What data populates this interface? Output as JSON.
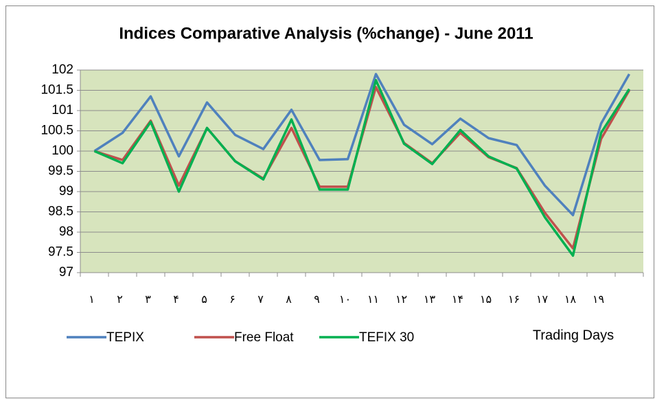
{
  "chart_data": {
    "type": "line",
    "title": "Indices Comparative Analysis (%change) - June 2011",
    "x_label": "Trading Days",
    "categories": [
      "۱",
      "۲",
      "۳",
      "۴",
      "۵",
      "۶",
      "۷",
      "۸",
      "۹",
      "۱۰",
      "۱۱",
      "۱۲",
      "۱۳",
      "۱۴",
      "۱۵",
      "۱۶",
      "۱۷",
      "۱۸",
      "۱۹",
      null
    ],
    "series": [
      {
        "name": "TEPIX",
        "color": "#4f81bd",
        "values": [
          100,
          100.45,
          101.35,
          99.87,
          101.2,
          100.4,
          100.05,
          101.02,
          99.78,
          99.8,
          101.9,
          100.65,
          100.17,
          100.8,
          100.32,
          100.15,
          99.15,
          98.42,
          100.68,
          101.9
        ]
      },
      {
        "name": "Free Float",
        "color": "#c0504d",
        "values": [
          100,
          99.78,
          100.75,
          99.15,
          100.57,
          99.75,
          99.32,
          100.57,
          99.12,
          99.12,
          101.58,
          100.2,
          99.7,
          100.45,
          99.85,
          99.58,
          98.48,
          97.6,
          100.3,
          101.5
        ]
      },
      {
        "name": "TEFIX 30",
        "color": "#00b050",
        "values": [
          100,
          99.7,
          100.72,
          99.0,
          100.57,
          99.75,
          99.3,
          100.78,
          99.05,
          99.05,
          101.75,
          100.18,
          99.68,
          100.52,
          99.87,
          99.57,
          98.37,
          97.42,
          100.45,
          101.53
        ]
      }
    ],
    "ylim": [
      97,
      102
    ],
    "yticks": [
      97,
      97.5,
      98,
      98.5,
      99,
      99.5,
      100,
      100.5,
      101,
      101.5,
      102
    ],
    "grid": true,
    "plot_background": "#d7e4bd",
    "legend": "bottom"
  }
}
